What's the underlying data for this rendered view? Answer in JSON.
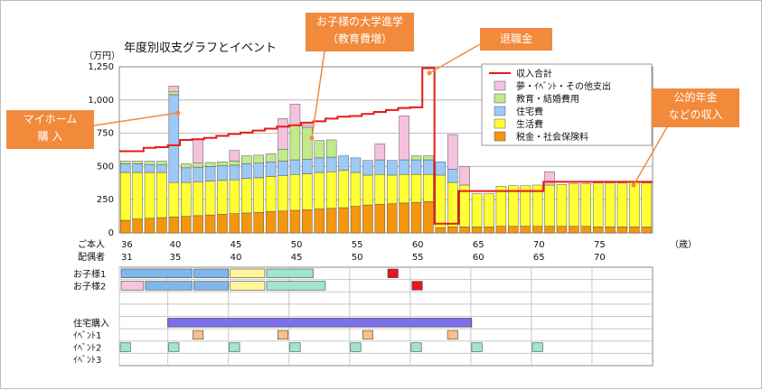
{
  "chart_data": {
    "type": "bar",
    "title": "年度別収支グラフとイベント",
    "y_unit": "（万円）",
    "ylim": [
      0,
      1250
    ],
    "y_ticks": [
      "0",
      "250",
      "500",
      "750",
      "1,000",
      "1,250"
    ],
    "self_label": "ご本人",
    "spouse_label": "配偶者",
    "age_unit": "（歳）",
    "x_self_start": 36,
    "x_self_end": 79,
    "x_tick_self": [
      "36",
      "40",
      "45",
      "50",
      "55",
      "60",
      "65",
      "70",
      "75"
    ],
    "x_tick_spouse": [
      "31",
      "35",
      "40",
      "45",
      "50",
      "55",
      "60",
      "65",
      "70"
    ],
    "x_tick_age": [
      36,
      40,
      45,
      50,
      55,
      60,
      65,
      70,
      75
    ],
    "series": [
      {
        "name": "税金・社会保険料",
        "color": "#f5960f",
        "values": [
          95,
          105,
          110,
          115,
          120,
          125,
          130,
          135,
          140,
          145,
          150,
          155,
          160,
          165,
          170,
          175,
          180,
          185,
          190,
          200,
          210,
          215,
          220,
          225,
          230,
          235,
          40,
          45,
          45,
          45,
          45,
          50,
          50,
          50,
          50,
          50,
          50,
          50,
          50,
          45,
          45,
          45,
          45,
          45
        ]
      },
      {
        "name": "生活費",
        "color": "#ffff33",
        "values": [
          360,
          350,
          345,
          340,
          260,
          255,
          255,
          255,
          255,
          255,
          260,
          260,
          265,
          265,
          270,
          270,
          275,
          275,
          280,
          255,
          225,
          225,
          215,
          215,
          210,
          205,
          395,
          335,
          315,
          250,
          250,
          300,
          305,
          305,
          310,
          310,
          315,
          320,
          320,
          330,
          330,
          330,
          335,
          330
        ]
      },
      {
        "name": "住宅費",
        "color": "#9cc9f5",
        "values": [
          65,
          65,
          60,
          60,
          660,
          110,
          110,
          110,
          110,
          110,
          110,
          110,
          110,
          110,
          110,
          110,
          110,
          110,
          110,
          110,
          110,
          110,
          110,
          110,
          110,
          110,
          100,
          100,
          0,
          0,
          0,
          0,
          0,
          0,
          0,
          0,
          0,
          0,
          0,
          0,
          0,
          0,
          0,
          0
        ]
      },
      {
        "name": "教育・結婚費用",
        "color": "#c1ea8c",
        "values": [
          20,
          20,
          25,
          25,
          25,
          30,
          30,
          30,
          30,
          30,
          60,
          60,
          60,
          90,
          260,
          240,
          130,
          130,
          0,
          0,
          0,
          0,
          0,
          0,
          30,
          30,
          0,
          0,
          0,
          0,
          0,
          0,
          0,
          0,
          0,
          0,
          0,
          0,
          0,
          0,
          0,
          0,
          0,
          0
        ]
      },
      {
        "name": "夢・ｲﾍﾞﾝﾄ・その他支出",
        "color": "#f5c2dd",
        "values": [
          0,
          0,
          0,
          0,
          40,
          0,
          180,
          0,
          0,
          80,
          0,
          0,
          0,
          230,
          160,
          20,
          0,
          0,
          0,
          0,
          0,
          120,
          0,
          330,
          0,
          0,
          0,
          260,
          140,
          0,
          0,
          0,
          0,
          0,
          0,
          100,
          0,
          0,
          0,
          0,
          0,
          0,
          0,
          0
        ]
      },
      {
        "name": "収入合計",
        "color": "#e81a1a",
        "values": [
          615,
          615,
          640,
          645,
          660,
          700,
          705,
          715,
          730,
          745,
          755,
          770,
          785,
          800,
          810,
          830,
          840,
          860,
          875,
          880,
          895,
          910,
          925,
          940,
          945,
          1240,
          70,
          70,
          315,
          315,
          315,
          315,
          315,
          315,
          315,
          385,
          385,
          385,
          385,
          385,
          385,
          385,
          385,
          385
        ]
      }
    ],
    "legend": [
      "収入合計",
      "夢・ｲﾍﾞﾝﾄ・その他支出",
      "教育・結婚費用",
      "住宅費",
      "生活費",
      "税金・社会保険料"
    ]
  },
  "annotations": {
    "home_purchase": [
      "マイホーム",
      "購 入"
    ],
    "university": [
      "お子様の大学進学",
      "（教育費増）"
    ],
    "retirement": "退職金",
    "pension": [
      "公的年金",
      "などの収入"
    ]
  },
  "timeline": {
    "rows": [
      "お子様1",
      "お子様2",
      "",
      "",
      "住宅購入",
      "ｲﾍﾞﾝﾄ1",
      "ｲﾍﾞﾝﾄ2",
      "ｲﾍﾞﾝﾄ3"
    ],
    "colors": {
      "blue": "#7fb7ea",
      "yellow": "#fff799",
      "teal": "#9fe5cf",
      "pink": "#f7c5e0",
      "red": "#e8141e",
      "purple": "#7b6fea",
      "orange": "#f9c08a"
    },
    "child1_bars": [
      [
        36,
        42,
        "blue"
      ],
      [
        42,
        45,
        "blue"
      ],
      [
        45,
        48,
        "yellow"
      ],
      [
        48,
        52,
        "teal"
      ]
    ],
    "child2_bars": [
      [
        36,
        38,
        "pink"
      ],
      [
        38,
        42,
        "blue"
      ],
      [
        42,
        45,
        "blue"
      ],
      [
        45,
        48,
        "yellow"
      ],
      [
        48,
        53,
        "teal"
      ]
    ],
    "child1_marker": 58,
    "child2_marker": 60,
    "home_purchase_span": [
      40,
      65
    ],
    "event1_ages": [
      42,
      49,
      56,
      63
    ],
    "event2_ages": [
      36,
      40,
      45,
      50,
      55,
      60,
      65,
      70
    ]
  }
}
